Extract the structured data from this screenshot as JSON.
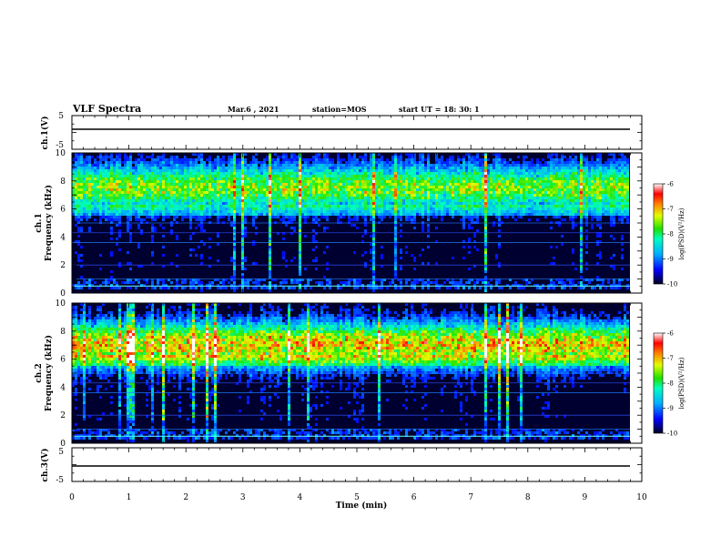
{
  "header": {
    "title": "VLF Spectra",
    "date": "Mar.6  , 2021",
    "station": "station=MOS",
    "start_time": "start  UT  =   18: 30: 1"
  },
  "chart_data": [
    {
      "panel": "ch1-waveform",
      "type": "line",
      "ylabel": "ch.1(V)",
      "ylim": [
        -5,
        5
      ],
      "yticks": [
        "5",
        "-5"
      ],
      "xlim": [
        0,
        10
      ],
      "trace_level": 0
    },
    {
      "panel": "ch1-spectrogram",
      "type": "heatmap",
      "ylabel": "ch.1\nFrequency (kHz)",
      "ylim": [
        0,
        10
      ],
      "yticks": [
        "0",
        "2",
        "4",
        "6",
        "8",
        "10"
      ],
      "xlim": [
        0,
        10
      ],
      "band_center_khz": 7.5,
      "colorbar_label": "log(PSD)(V²/Hz)",
      "colorbar_range": [
        -10,
        -6
      ],
      "colorbar_ticks": [
        "-6",
        "-7",
        "-8",
        "-9",
        "-10"
      ]
    },
    {
      "panel": "ch2-spectrogram",
      "type": "heatmap",
      "ylabel": "ch.2\nFrequency (kHz)",
      "ylim": [
        0,
        10
      ],
      "yticks": [
        "0",
        "2",
        "4",
        "6",
        "8",
        "10"
      ],
      "xlim": [
        0,
        10
      ],
      "band_center_khz": 7.0,
      "colorbar_label": "log(PSD)(V²/Hz)",
      "colorbar_range": [
        -10,
        -6
      ],
      "colorbar_ticks": [
        "-6",
        "-7",
        "-8",
        "-9",
        "-10"
      ]
    },
    {
      "panel": "ch3-waveform",
      "type": "line",
      "ylabel": "ch.3(V)",
      "ylim": [
        -5,
        5
      ],
      "yticks": [
        "5",
        "-5"
      ],
      "xlim": [
        0,
        10
      ],
      "trace_level": 0
    }
  ],
  "x_axis": {
    "label": "Time  (min)",
    "ticks": [
      "0",
      "1",
      "2",
      "3",
      "4",
      "5",
      "6",
      "7",
      "8",
      "9",
      "10"
    ]
  },
  "colors": {
    "background": "#ffffff",
    "axes": "#000000",
    "spectro_low": "#000030",
    "spectro_high": "#ff0000"
  }
}
